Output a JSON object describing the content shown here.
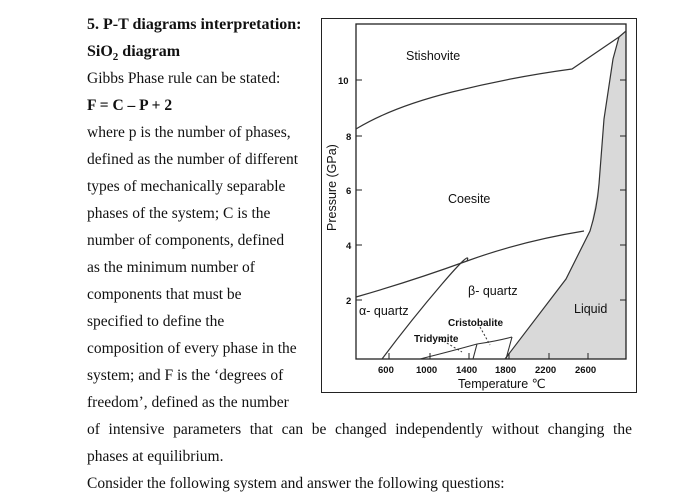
{
  "heading": "5. P-T diagrams interpretation:",
  "subheading_prefix": "SiO",
  "subheading_sub": "2",
  "subheading_suffix": " diagram",
  "text_lines": [
    "Gibbs Phase rule can be stated:",
    "F = C – P + 2",
    "where p is the number of phases,",
    "defined as the number of different",
    "types of mechanically separable",
    "phases of the system; C is the",
    "number of components, defined",
    "as the minimum number of",
    "components that must be",
    "specified to define the",
    "composition of every phase in the",
    "system; and F is the ‘degrees of",
    "freedom’, defined as the number"
  ],
  "full_lines": [
    "of intensive parameters that can be changed independently without changing the",
    "phases at equilibrium.",
    "Consider the following system and answer the following questions:"
  ],
  "figure": {
    "ylabel": "Pressure (GPa)",
    "xlabel": "Temperature ℃",
    "y_ticks": [
      "10",
      "8",
      "6",
      "4",
      "2"
    ],
    "x_ticks": [
      "600",
      "1000",
      "1400",
      "1800",
      "2200",
      "2600"
    ],
    "phases": {
      "stishovite": "Stishovite",
      "coesite": "Coesite",
      "alpha_quartz": "α- quartz",
      "beta_quartz": "β- quartz",
      "liquid": "Liquid",
      "cristobalite": "Cristobalite",
      "tridymite": "Tridymite"
    },
    "liquid_fill": "#d9d9d9"
  }
}
